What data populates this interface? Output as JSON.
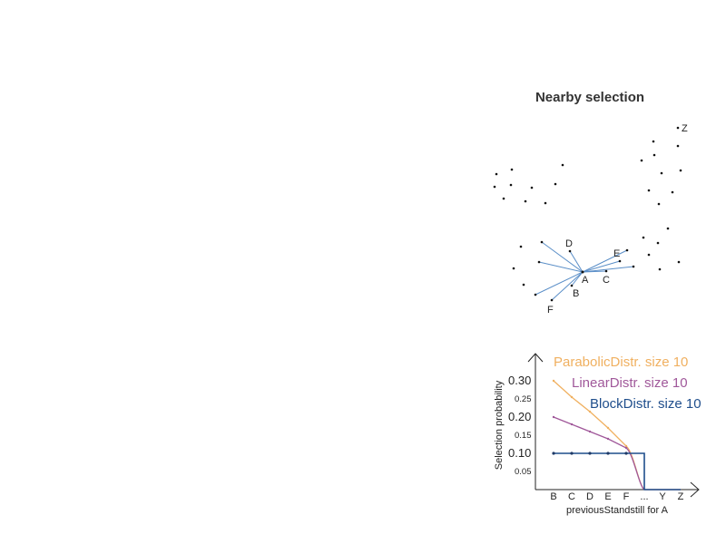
{
  "title": "Nearby selection",
  "graph": {
    "hub_label": "A",
    "point_labels": [
      "B",
      "C",
      "D",
      "E",
      "F",
      "Z"
    ]
  },
  "chart_data": {
    "type": "line",
    "xlabel": "previousStandstill for A",
    "ylabel": "Selection probability",
    "categories": [
      "B",
      "C",
      "D",
      "E",
      "F",
      "...",
      "Y",
      "Z"
    ],
    "y_ticks_major": [
      "0.30",
      "0.20",
      "0.10"
    ],
    "y_ticks_minor": [
      "0.25",
      "0.15",
      "0.05"
    ],
    "ylim": [
      0,
      0.35
    ],
    "series": [
      {
        "name": "ParabolicDistr. size 10",
        "color": "#f0b060",
        "values": [
          0.3,
          0.255,
          0.215,
          0.17,
          0.12,
          0.0,
          0.0,
          0.0
        ]
      },
      {
        "name": "LinearDistr. size 10",
        "color": "#a0589a",
        "values": [
          0.2,
          0.18,
          0.16,
          0.14,
          0.115,
          0.0,
          0.0,
          0.0
        ]
      },
      {
        "name": "BlockDistr. size 10",
        "color": "#1f4e8c",
        "values": [
          0.1,
          0.1,
          0.1,
          0.1,
          0.1,
          0.0,
          0.0,
          0.0
        ]
      }
    ],
    "legend_placement": "top-right"
  }
}
